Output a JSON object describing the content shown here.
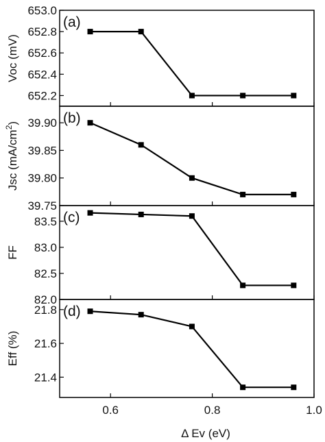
{
  "xlabel": "Δ Ev (eV)",
  "xticks": [
    "0.6",
    "0.8",
    "1.0"
  ],
  "chart_data": [
    {
      "type": "line",
      "panel_label": "(a)",
      "ylabel": "Voc (mV)",
      "ylim": [
        652.1,
        653.0
      ],
      "yticks": [
        652.2,
        652.4,
        652.6,
        652.8,
        653.0
      ],
      "ytick_labels": [
        "652.2",
        "652.4",
        "652.6",
        "652.8",
        "653.0"
      ],
      "xlim": [
        0.5,
        1.0
      ],
      "x": [
        0.56,
        0.66,
        0.76,
        0.86,
        0.96
      ],
      "values": [
        652.8,
        652.8,
        652.2,
        652.2,
        652.2
      ]
    },
    {
      "type": "line",
      "panel_label": "(b)",
      "ylabel": "Jsc (mA/cm",
      "ylabel_sup": "2",
      "ylabel_end": ")",
      "ylim": [
        39.75,
        39.93
      ],
      "yticks": [
        39.75,
        39.8,
        39.85,
        39.9
      ],
      "ytick_labels": [
        "39.75",
        "39.80",
        "39.85",
        "39.90"
      ],
      "xlim": [
        0.5,
        1.0
      ],
      "x": [
        0.56,
        0.66,
        0.76,
        0.86,
        0.96
      ],
      "values": [
        39.9,
        39.86,
        39.8,
        39.77,
        39.77
      ]
    },
    {
      "type": "line",
      "panel_label": "(c)",
      "ylabel": "FF",
      "ylim": [
        82.0,
        83.8
      ],
      "yticks": [
        82.0,
        82.5,
        83.0,
        83.5
      ],
      "ytick_labels": [
        "82.0",
        "82.5",
        "83.0",
        "83.5"
      ],
      "xlim": [
        0.5,
        1.0
      ],
      "x": [
        0.56,
        0.66,
        0.76,
        0.86,
        0.96
      ],
      "values": [
        83.66,
        83.63,
        83.6,
        82.27,
        82.27
      ]
    },
    {
      "type": "line",
      "panel_label": "(d)",
      "ylabel": "Eff (%)",
      "ylim": [
        21.28,
        21.86
      ],
      "yticks": [
        21.4,
        21.6,
        21.8
      ],
      "ytick_labels": [
        "21.4",
        "21.6",
        "21.8"
      ],
      "xlim": [
        0.5,
        1.0
      ],
      "x": [
        0.56,
        0.66,
        0.76,
        0.86,
        0.96
      ],
      "values": [
        21.79,
        21.77,
        21.7,
        21.34,
        21.34
      ]
    }
  ]
}
